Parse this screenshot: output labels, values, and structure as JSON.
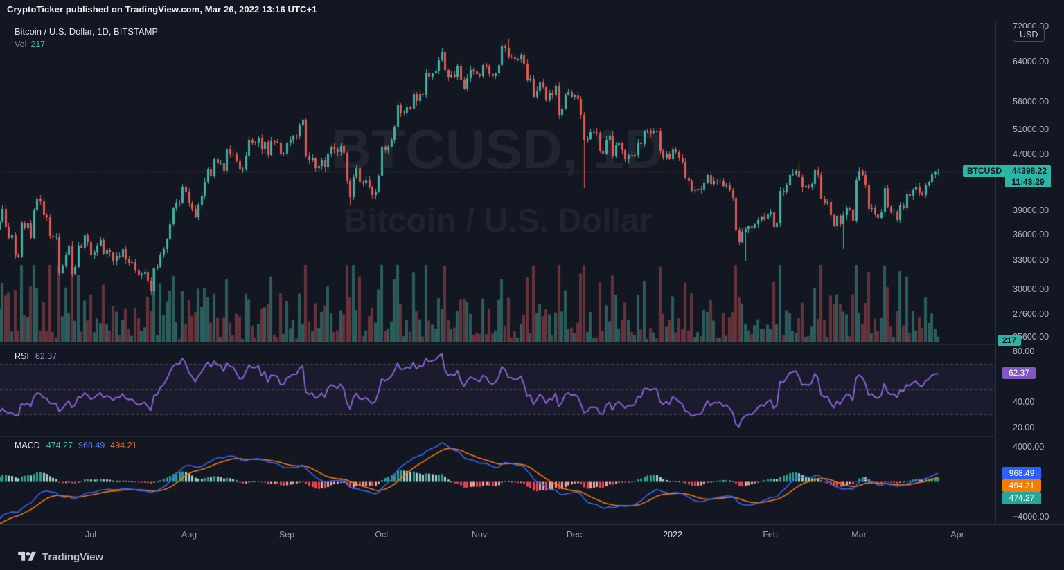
{
  "header": {
    "attribution": "CryptoTicker published on TradingView.com, Mar 26, 2022 13:16 UTC+1"
  },
  "legend": {
    "symbol_title": "Bitcoin / U.S. Dollar, 1D, BITSTAMP",
    "vol_label": "Vol",
    "vol_value": "217"
  },
  "watermark": {
    "line1": "BTCUSD, 1D",
    "line2": "Bitcoin / U.S. Dollar"
  },
  "price_badge": {
    "symbol": "BTCUSD",
    "price": "44398.22",
    "countdown": "11:43:29"
  },
  "axis": {
    "currency_button": "USD"
  },
  "rsi": {
    "label": "RSI",
    "value": "62.37"
  },
  "macd": {
    "label": "MACD",
    "hist_value": "474.27",
    "macd_value": "968.49",
    "signal_value": "494.21"
  },
  "footer": {
    "brand": "TradingView"
  },
  "colors": {
    "background": "#131722",
    "grid": "#2a2e39",
    "axis_text": "#b2b5be",
    "candle_up": "#3fb3a3",
    "candle_down": "#e25a56",
    "volume_up": "rgba(70,163,149,0.5)",
    "volume_down": "rgba(205,86,90,0.45)",
    "rsi_line": "#8a63d2",
    "rsi_badge": "#7e57c2",
    "rsi_band_fill": "rgba(126,87,194,0.07)",
    "macd_line": "#3964f9",
    "macd_signal": "#f57c00",
    "hist_up_grow": "#2ba08f",
    "hist_up_fall": "#9fd4cb",
    "hist_dn_fall": "#ef4550",
    "hist_dn_grow": "#f2a7a6",
    "badge_teal": "#2cb6a6",
    "badge_blue": "#2962ff",
    "badge_orange": "#f57c00",
    "badge_teal2": "#26a69a"
  },
  "chart_data": {
    "type": "candlestick",
    "symbol": "BTCUSD",
    "exchange": "BITSTAMP",
    "interval": "1D",
    "price_scale": "log",
    "visible_price_range": [
      24900,
      73100
    ],
    "x_start_date": "2021-06-02",
    "x_end_date": "2022-03-26",
    "last_price": 44398.22,
    "last_volume": 217,
    "price_ticks": [
      72000,
      64000,
      56000,
      51000,
      47000,
      39000,
      36000,
      33000,
      30000,
      27600,
      25600
    ],
    "months": [
      {
        "label": "Jul",
        "index": 29
      },
      {
        "label": "Aug",
        "index": 60
      },
      {
        "label": "Sep",
        "index": 91
      },
      {
        "label": "Oct",
        "index": 121
      },
      {
        "label": "Nov",
        "index": 152
      },
      {
        "label": "Dec",
        "index": 182
      },
      {
        "label": "2022",
        "index": 213,
        "major": true
      },
      {
        "label": "Feb",
        "index": 244
      },
      {
        "label": "Mar",
        "index": 272
      },
      {
        "label": "Apr",
        "index": 303
      }
    ],
    "closes": [
      37575,
      39208,
      36894,
      35551,
      35862,
      33589,
      33416,
      37388,
      36690,
      37338,
      35546,
      39020,
      40516,
      40144,
      38349,
      38092,
      35819,
      35615,
      35698,
      31686,
      32447,
      33674,
      34654,
      31584,
      32283,
      34700,
      34434,
      35867,
      35040,
      33572,
      33897,
      34668,
      35287,
      33746,
      34235,
      33855,
      32877,
      33515,
      33444,
      34254,
      33086,
      32729,
      32820,
      31880,
      31383,
      31520,
      31783,
      30817,
      29790,
      32144,
      32287,
      33634,
      34290,
      35400,
      37237,
      39240,
      40019,
      40016,
      42206,
      41461,
      39878,
      39193,
      38138,
      39750,
      40882,
      42825,
      44634,
      43790,
      46285,
      45585,
      45593,
      44417,
      47800,
      47096,
      47019,
      45927,
      44686,
      44708,
      46760,
      49327,
      48905,
      48869,
      49532,
      47707,
      48994,
      46843,
      49069,
      48960,
      48834,
      46998,
      47112,
      48830,
      49288,
      49999,
      49935,
      51789,
      52670,
      46811,
      46061,
      46396,
      44842,
      45164,
      46025,
      44940,
      47092,
      48130,
      47737,
      47299,
      48306,
      47239,
      43011,
      40734,
      43575,
      44888,
      42839,
      42686,
      43172,
      42157,
      41030,
      41522,
      43790,
      48165,
      47659,
      48200,
      49224,
      51505,
      55360,
      53792,
      53954,
      54949,
      54659,
      57471,
      56041,
      57401,
      57321,
      61672,
      60875,
      61528,
      62023,
      64287,
      66002,
      62193,
      60690,
      61300,
      60860,
      63080,
      60320,
      58470,
      60580,
      62250,
      61880,
      61320,
      60950,
      63220,
      62900,
      61440,
      60970,
      61520,
      63290,
      67530,
      66940,
      64940,
      64800,
      64380,
      64450,
      65500,
      63600,
      60060,
      60360,
      56900,
      58100,
      59730,
      58690,
      56280,
      57550,
      57180,
      58960,
      53560,
      54750,
      57270,
      57830,
      56950,
      57180,
      56480,
      53600,
      49150,
      49400,
      50580,
      50620,
      50470,
      47550,
      47150,
      49330,
      50050,
      46700,
      48370,
      48860,
      47650,
      46200,
      46880,
      46700,
      46900,
      48890,
      48590,
      50820,
      50820,
      50430,
      50750,
      50700,
      47550,
      46470,
      47120,
      46210,
      47730,
      47290,
      46440,
      45830,
      43440,
      43090,
      41560,
      41690,
      41860,
      41820,
      42740,
      43900,
      42560,
      43080,
      43010,
      43090,
      42240,
      42370,
      41660,
      40680,
      36450,
      35070,
      36280,
      36650,
      36950,
      36820,
      37200,
      37780,
      38160,
      37920,
      38480,
      38720,
      36900,
      37310,
      41580,
      41380,
      42400,
      43850,
      44100,
      44420,
      43520,
      42100,
      42240,
      42060,
      42540,
      44580,
      43900,
      40530,
      40000,
      40120,
      38390,
      37010,
      38280,
      37270,
      38330,
      39230,
      39120,
      37710,
      43190,
      44420,
      43890,
      42460,
      39140,
      39400,
      38420,
      38030,
      38730,
      41940,
      39420,
      38730,
      38810,
      37790,
      39670,
      39280,
      41140,
      40920,
      41760,
      42200,
      41280,
      41000,
      42360,
      42890,
      43960,
      44310,
      44398
    ],
    "seed_closes_prior": [
      58000,
      56500,
      49000,
      43500,
      37000,
      34800,
      38500,
      40200,
      37300,
      36300,
      35300,
      37600,
      39100,
      36800,
      34600,
      35700,
      36600,
      37800,
      35200,
      36200
    ],
    "special_lows": {
      "49": 29300,
      "111": 39600,
      "185": 42000,
      "236": 32950,
      "267": 34300
    },
    "special_highs": {
      "140": 67000,
      "161": 68990,
      "253": 45850
    },
    "rsi_panel": {
      "period": 14,
      "last": 62.37,
      "bands": [
        70,
        50,
        30
      ],
      "ticks": [
        80,
        40,
        20
      ]
    },
    "macd_panel": {
      "fast": 12,
      "slow": 26,
      "signal": 9,
      "last_hist": 474.27,
      "last_macd": 968.49,
      "last_signal": 494.21,
      "ticks": [
        4000,
        -4000
      ]
    }
  }
}
